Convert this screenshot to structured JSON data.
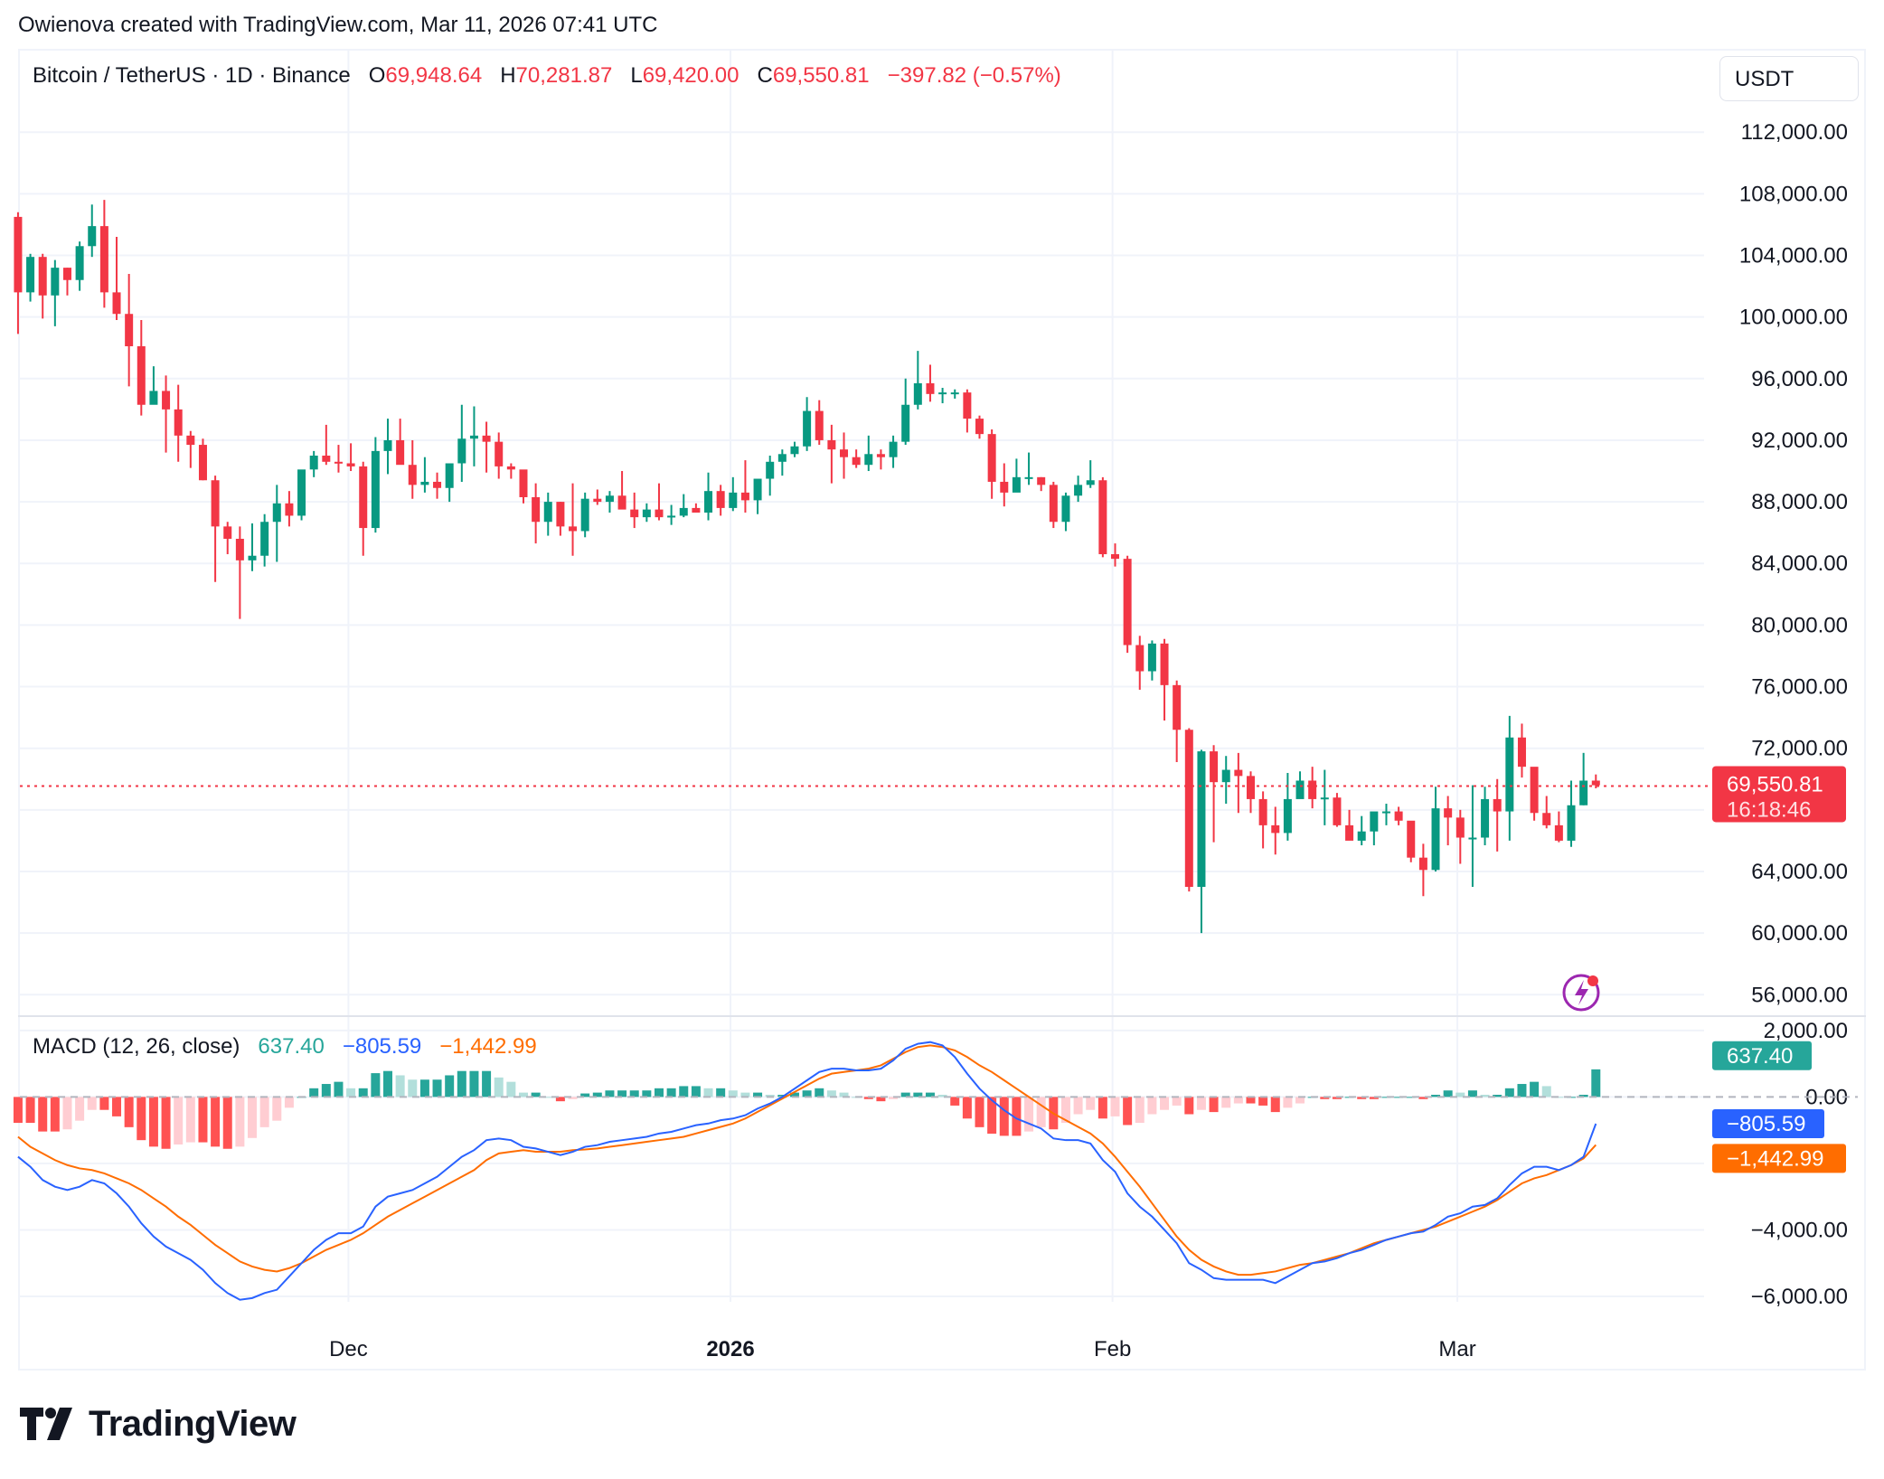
{
  "attribution": "Owienova created with TradingView.com, Mar 11, 2026 07:41 UTC",
  "symbol": {
    "title": "Bitcoin / TetherUS · 1D · Binance",
    "open_label": "O",
    "open": "69,948.64",
    "high_label": "H",
    "high": "70,281.87",
    "low_label": "L",
    "low": "69,420.00",
    "close_label": "C",
    "close": "69,550.81",
    "change": "−397.82 (−0.57%)"
  },
  "currency": "USDT",
  "last_price": {
    "value": "69,550.81",
    "countdown": "16:18:46"
  },
  "macd": {
    "title": "MACD (12, 26, close)",
    "histogram": "637.40",
    "macd": "−805.59",
    "signal": "−1,442.99"
  },
  "colors": {
    "up": "#089981",
    "down": "#F23645",
    "hist_up_strong": "#26A69A",
    "hist_up_weak": "#B2DFDB",
    "hist_down_strong": "#FF5252",
    "hist_down_weak": "#FFCDD2",
    "macd_line": "#2962FF",
    "signal_line": "#FF6D00",
    "grid": "#f0f3fa",
    "text": "#131722"
  },
  "brand": "TradingView",
  "chart_data": [
    {
      "type": "candlestick",
      "title": "Bitcoin / TetherUS · 1D · Binance",
      "xlabel": "",
      "ylabel": "USDT",
      "x_ticks": [
        "Dec",
        "2026",
        "Feb",
        "Mar"
      ],
      "y_ticks": [
        "112,000.00",
        "108,000.00",
        "104,000.00",
        "100,000.00",
        "96,000.00",
        "92,000.00",
        "88,000.00",
        "84,000.00",
        "80,000.00",
        "76,000.00",
        "72,000.00",
        "64,000.00",
        "60,000.00",
        "56,000.00"
      ],
      "ylim": [
        55000,
        115000
      ],
      "start_date": "2025-11-04",
      "end_date": "2026-03-11",
      "ohlc": [
        [
          106.5,
          106.8,
          98.9,
          101.6
        ],
        [
          101.6,
          104.1,
          101.0,
          103.9
        ],
        [
          103.9,
          104.1,
          99.9,
          101.4
        ],
        [
          101.4,
          103.7,
          99.4,
          103.2
        ],
        [
          103.2,
          103.2,
          101.4,
          102.4
        ],
        [
          102.4,
          104.9,
          101.7,
          104.6
        ],
        [
          104.6,
          107.3,
          103.9,
          105.9
        ],
        [
          105.9,
          107.6,
          100.6,
          101.6
        ],
        [
          101.6,
          105.2,
          99.8,
          100.2
        ],
        [
          100.2,
          102.8,
          95.5,
          98.1
        ],
        [
          98.1,
          99.8,
          93.6,
          94.3
        ],
        [
          94.3,
          96.8,
          95.2,
          95.2
        ],
        [
          95.2,
          96.2,
          91.2,
          94.0
        ],
        [
          94.0,
          95.6,
          90.6,
          92.3
        ],
        [
          92.3,
          92.6,
          90.2,
          91.7
        ],
        [
          91.7,
          92.1,
          89.4,
          89.4
        ],
        [
          89.4,
          89.7,
          82.8,
          86.4
        ],
        [
          86.4,
          86.7,
          84.6,
          85.6
        ],
        [
          85.6,
          86.4,
          80.4,
          84.2
        ],
        [
          84.2,
          86.6,
          83.5,
          84.5
        ],
        [
          84.5,
          87.2,
          83.8,
          86.7
        ],
        [
          86.7,
          89.1,
          84.1,
          87.9
        ],
        [
          87.9,
          88.7,
          86.4,
          87.1
        ],
        [
          87.1,
          90.0,
          86.8,
          90.1
        ],
        [
          90.1,
          91.3,
          89.6,
          91.0
        ],
        [
          91.0,
          93.0,
          90.4,
          90.6
        ],
        [
          90.6,
          91.7,
          89.9,
          90.5
        ],
        [
          90.5,
          91.8,
          90.0,
          90.3
        ],
        [
          90.3,
          90.6,
          84.5,
          86.3
        ],
        [
          86.3,
          92.2,
          86.0,
          91.3
        ],
        [
          91.3,
          93.4,
          89.8,
          92.0
        ],
        [
          92.0,
          93.4,
          90.9,
          90.4
        ],
        [
          90.4,
          92.0,
          88.2,
          89.1
        ],
        [
          89.1,
          90.9,
          88.6,
          89.3
        ],
        [
          89.3,
          89.9,
          88.2,
          88.9
        ],
        [
          88.9,
          90.4,
          88.0,
          90.5
        ],
        [
          90.5,
          94.3,
          89.3,
          92.1
        ],
        [
          92.1,
          94.2,
          90.3,
          92.3
        ],
        [
          92.3,
          93.2,
          89.9,
          91.9
        ],
        [
          91.9,
          92.5,
          89.5,
          90.3
        ],
        [
          90.3,
          90.5,
          89.5,
          90.1
        ],
        [
          90.1,
          89.8,
          87.9,
          88.3
        ],
        [
          88.3,
          89.2,
          85.3,
          86.7
        ],
        [
          86.7,
          88.6,
          85.8,
          88.0
        ],
        [
          88.0,
          88.0,
          85.8,
          86.4
        ],
        [
          86.4,
          89.2,
          84.5,
          86.1
        ],
        [
          86.1,
          88.6,
          85.7,
          88.2
        ],
        [
          88.2,
          88.8,
          87.8,
          88.0
        ],
        [
          88.0,
          88.7,
          87.3,
          88.4
        ],
        [
          88.4,
          90.0,
          87.9,
          87.5
        ],
        [
          87.5,
          88.6,
          86.3,
          87.0
        ],
        [
          87.0,
          87.9,
          86.7,
          87.5
        ],
        [
          87.5,
          89.2,
          86.8,
          87.0
        ],
        [
          87.0,
          87.8,
          86.5,
          87.1
        ],
        [
          87.1,
          88.5,
          87.0,
          87.6
        ],
        [
          87.6,
          87.9,
          87.3,
          87.3
        ],
        [
          87.3,
          89.9,
          86.8,
          88.7
        ],
        [
          88.7,
          89.1,
          87.1,
          87.6
        ],
        [
          87.6,
          89.6,
          87.4,
          88.6
        ],
        [
          88.6,
          90.7,
          87.3,
          88.1
        ],
        [
          88.1,
          88.4,
          87.2,
          89.5
        ],
        [
          89.5,
          91.0,
          88.4,
          90.6
        ],
        [
          90.6,
          91.4,
          89.7,
          91.1
        ],
        [
          91.1,
          91.9,
          90.9,
          91.6
        ],
        [
          91.6,
          94.8,
          91.3,
          93.9
        ],
        [
          93.9,
          94.6,
          91.7,
          92.0
        ],
        [
          92.0,
          93.0,
          89.2,
          91.4
        ],
        [
          91.4,
          92.5,
          89.5,
          90.9
        ],
        [
          90.9,
          91.4,
          90.2,
          90.4
        ],
        [
          90.4,
          92.3,
          90.0,
          91.1
        ],
        [
          91.1,
          91.4,
          90.1,
          90.9
        ],
        [
          90.9,
          92.3,
          90.2,
          91.9
        ],
        [
          91.9,
          96.0,
          91.7,
          94.3
        ],
        [
          94.3,
          97.8,
          94.0,
          95.7
        ],
        [
          95.7,
          96.9,
          94.5,
          95.0
        ],
        [
          95.0,
          95.4,
          94.4,
          95.1
        ],
        [
          95.1,
          95.3,
          94.7,
          95.1
        ],
        [
          95.1,
          95.3,
          92.5,
          93.4
        ],
        [
          93.4,
          93.6,
          92.1,
          92.4
        ],
        [
          92.4,
          92.7,
          88.2,
          89.3
        ],
        [
          89.3,
          90.5,
          87.7,
          88.6
        ],
        [
          88.6,
          90.8,
          88.8,
          89.6
        ],
        [
          89.6,
          91.2,
          89.1,
          89.6
        ],
        [
          89.6,
          89.6,
          88.7,
          89.1
        ],
        [
          89.1,
          89.3,
          86.3,
          86.7
        ],
        [
          86.7,
          88.6,
          86.1,
          88.4
        ],
        [
          88.4,
          89.7,
          88.0,
          89.1
        ],
        [
          89.1,
          90.7,
          88.9,
          89.4
        ],
        [
          89.4,
          89.6,
          84.4,
          84.6
        ],
        [
          84.6,
          85.3,
          83.8,
          84.3
        ],
        [
          84.3,
          84.5,
          78.2,
          78.7
        ],
        [
          78.7,
          79.3,
          75.8,
          77.0
        ],
        [
          77.0,
          79.0,
          76.4,
          78.8
        ],
        [
          78.8,
          79.1,
          73.8,
          76.1
        ],
        [
          76.1,
          76.4,
          71.1,
          73.2
        ],
        [
          73.2,
          73.3,
          62.7,
          63.0
        ],
        [
          63.0,
          71.9,
          60.0,
          71.8
        ],
        [
          71.8,
          72.2,
          65.9,
          69.8
        ],
        [
          69.8,
          71.5,
          68.4,
          70.6
        ],
        [
          70.6,
          71.7,
          67.8,
          70.2
        ],
        [
          70.2,
          70.5,
          67.8,
          68.7
        ],
        [
          68.7,
          69.2,
          65.5,
          67.0
        ],
        [
          67.0,
          68.2,
          65.1,
          66.5
        ],
        [
          66.5,
          70.4,
          66.0,
          68.7
        ],
        [
          68.7,
          70.5,
          68.9,
          69.9
        ],
        [
          69.9,
          70.8,
          68.1,
          68.7
        ],
        [
          68.7,
          70.6,
          67.0,
          68.8
        ],
        [
          68.8,
          69.1,
          66.9,
          67.0
        ],
        [
          67.0,
          68.0,
          66.1,
          66.0
        ],
        [
          66.0,
          67.6,
          65.7,
          66.6
        ],
        [
          66.6,
          67.4,
          65.7,
          67.9
        ],
        [
          67.9,
          68.4,
          67.0,
          67.9
        ],
        [
          67.9,
          68.2,
          67.0,
          67.3
        ],
        [
          67.3,
          67.2,
          64.6,
          64.9
        ],
        [
          64.9,
          65.8,
          62.4,
          64.1
        ],
        [
          64.1,
          69.5,
          64.0,
          68.1
        ],
        [
          68.1,
          68.9,
          65.7,
          67.5
        ],
        [
          67.5,
          68.0,
          64.5,
          66.2
        ],
        [
          66.2,
          69.6,
          63.0,
          66.2
        ],
        [
          66.2,
          69.5,
          65.7,
          68.7
        ],
        [
          68.7,
          70.0,
          65.3,
          67.9
        ],
        [
          67.9,
          74.1,
          66.0,
          72.7
        ],
        [
          72.7,
          73.6,
          70.1,
          70.8
        ],
        [
          70.8,
          70.6,
          67.3,
          67.8
        ],
        [
          67.8,
          68.9,
          66.8,
          67.0
        ],
        [
          67.0,
          67.9,
          65.9,
          66.0
        ],
        [
          66.0,
          69.9,
          65.6,
          68.3
        ],
        [
          68.3,
          71.7,
          68.3,
          69.9
        ],
        [
          69.9,
          70.3,
          69.4,
          69.6
        ]
      ]
    },
    {
      "type": "line",
      "title": "MACD (12, 26, close)",
      "y_ticks": [
        "2,000.00",
        "0.00",
        "−4,000.00",
        "−6,000.00"
      ],
      "ylim": [
        -7000,
        2500
      ],
      "series": [
        {
          "name": "MACD",
          "color": "#2962FF",
          "last": -805.59
        },
        {
          "name": "Signal",
          "color": "#FF6D00",
          "last": -1442.99
        },
        {
          "name": "Histogram",
          "last": 637.4
        }
      ],
      "macd_values": [
        -1800,
        -2100,
        -2500,
        -2700,
        -2800,
        -2700,
        -2500,
        -2600,
        -2900,
        -3300,
        -3800,
        -4200,
        -4500,
        -4700,
        -4900,
        -5200,
        -5600,
        -5900,
        -6100,
        -6050,
        -5900,
        -5800,
        -5400,
        -5000,
        -4600,
        -4300,
        -4100,
        -4100,
        -3900,
        -3300,
        -3000,
        -2900,
        -2800,
        -2600,
        -2400,
        -2100,
        -1800,
        -1600,
        -1300,
        -1250,
        -1300,
        -1500,
        -1550,
        -1650,
        -1750,
        -1650,
        -1500,
        -1450,
        -1350,
        -1300,
        -1250,
        -1200,
        -1100,
        -1050,
        -950,
        -850,
        -800,
        -700,
        -650,
        -550,
        -350,
        -200,
        0,
        250,
        500,
        750,
        850,
        850,
        800,
        800,
        850,
        1100,
        1450,
        1600,
        1650,
        1550,
        1200,
        700,
        250,
        -100,
        -400,
        -650,
        -800,
        -950,
        -1250,
        -1300,
        -1300,
        -1400,
        -1900,
        -2250,
        -2900,
        -3300,
        -3600,
        -4000,
        -4400,
        -5000,
        -5200,
        -5450,
        -5500,
        -5500,
        -5500,
        -5500,
        -5600,
        -5400,
        -5200,
        -5000,
        -4950,
        -4850,
        -4700,
        -4600,
        -4450,
        -4300,
        -4200,
        -4100,
        -4050,
        -3850,
        -3600,
        -3500,
        -3300,
        -3250,
        -3050,
        -2650,
        -2300,
        -2100,
        -2100,
        -2200,
        -2050,
        -1800,
        -805
      ],
      "signal_values": [
        -1200,
        -1500,
        -1700,
        -1900,
        -2050,
        -2150,
        -2200,
        -2300,
        -2450,
        -2600,
        -2800,
        -3050,
        -3300,
        -3600,
        -3850,
        -4150,
        -4450,
        -4700,
        -4950,
        -5100,
        -5200,
        -5250,
        -5150,
        -5000,
        -4800,
        -4600,
        -4450,
        -4300,
        -4100,
        -3850,
        -3600,
        -3400,
        -3200,
        -3000,
        -2800,
        -2600,
        -2400,
        -2200,
        -1900,
        -1700,
        -1650,
        -1600,
        -1650,
        -1650,
        -1650,
        -1600,
        -1580,
        -1550,
        -1500,
        -1450,
        -1400,
        -1350,
        -1300,
        -1250,
        -1200,
        -1100,
        -1000,
        -900,
        -800,
        -650,
        -450,
        -250,
        -50,
        150,
        350,
        550,
        700,
        750,
        800,
        850,
        950,
        1150,
        1350,
        1500,
        1550,
        1500,
        1400,
        1200,
        950,
        750,
        500,
        250,
        0,
        -250,
        -500,
        -700,
        -900,
        -1100,
        -1400,
        -1800,
        -2250,
        -2700,
        -3200,
        -3700,
        -4200,
        -4600,
        -4900,
        -5100,
        -5250,
        -5350,
        -5350,
        -5300,
        -5250,
        -5150,
        -5050,
        -5000,
        -4900,
        -4800,
        -4700,
        -4550,
        -4400,
        -4300,
        -4200,
        -4100,
        -4000,
        -3900,
        -3750,
        -3600,
        -3450,
        -3300,
        -3100,
        -2850,
        -2600,
        -2450,
        -2350,
        -2200,
        -2050,
        -1850,
        -1443
      ]
    }
  ]
}
